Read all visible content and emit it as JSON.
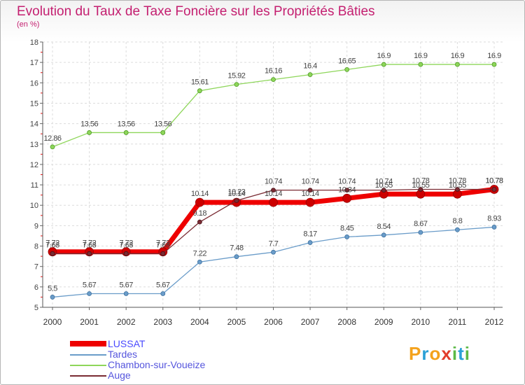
{
  "title": "Evolution du Taux de Taxe Foncière sur les Propriétés Bâties",
  "unit_label": "(en %)",
  "brand": {
    "letters": [
      "P",
      "r",
      "o",
      "x",
      "i",
      "t",
      "i"
    ],
    "colors": [
      "#f4a21c",
      "#2aa0d6",
      "#f4a21c",
      "#e23c2a",
      "#5cb946",
      "#2aa0d6",
      "#5cb946"
    ]
  },
  "chart_data": {
    "type": "line",
    "title": "Evolution du Taux de Taxe Foncière sur les Propriétés Bâties",
    "xlabel": "",
    "ylabel": "(en %)",
    "ylim": [
      5,
      18
    ],
    "yticks": [
      "5",
      "6",
      "7",
      "8",
      "9",
      "10",
      "11",
      "12",
      "13",
      "14",
      "15",
      "16",
      "17",
      "18"
    ],
    "x": [
      "2000",
      "2001",
      "2002",
      "2003",
      "2004",
      "2005",
      "2006",
      "2007",
      "2008",
      "2009",
      "2010",
      "2011",
      "2012"
    ],
    "series": [
      {
        "name": "LUSSAT",
        "color": "#ee0000",
        "values": [
          7.72,
          7.72,
          7.72,
          7.72,
          10.14,
          10.14,
          10.14,
          10.14,
          10.34,
          10.55,
          10.55,
          10.55,
          10.78
        ]
      },
      {
        "name": "Tardes",
        "color": "#6a9cc9",
        "values": [
          5.5,
          5.67,
          5.67,
          5.67,
          7.22,
          7.48,
          7.7,
          8.17,
          8.45,
          8.54,
          8.67,
          8.8,
          8.93
        ]
      },
      {
        "name": "Chambon-sur-Voueize",
        "color": "#8ed65a",
        "values": [
          12.86,
          13.56,
          13.56,
          13.56,
          15.61,
          15.92,
          16.16,
          16.4,
          16.65,
          16.9,
          16.9,
          16.9,
          16.9
        ]
      },
      {
        "name": "Auge",
        "color": "#7a2b33",
        "values": [
          7.63,
          7.63,
          7.63,
          7.63,
          9.18,
          10.23,
          10.74,
          10.74,
          10.74,
          10.74,
          10.78,
          10.78,
          10.78
        ]
      }
    ],
    "data_labels": [
      [
        "7.72",
        "7.72",
        "7.72",
        "7.72",
        "10.14",
        "10.14",
        "10.14",
        "10.14",
        "10.34",
        "10.55",
        "10.55",
        "10.55",
        "10.78"
      ],
      [
        "5.5",
        "5.67",
        "5.67",
        "5.67",
        "7.22",
        "7.48",
        "7.7",
        "8.17",
        "8.45",
        "8.54",
        "8.67",
        "8.8",
        "8.93"
      ],
      [
        "12.86",
        "13.56",
        "13.56",
        "13.56",
        "15.61",
        "15.92",
        "16.16",
        "16.4",
        "16.65",
        "16.9",
        "16.9",
        "16.9",
        "16.9"
      ],
      [
        "7.63",
        "7.63",
        "7.63",
        "7.63",
        "9.18",
        "10.23",
        "10.74",
        "10.74",
        "10.74",
        "10.74",
        "10.78",
        "10.78",
        "10.78"
      ]
    ],
    "legend": "bottom-left"
  }
}
